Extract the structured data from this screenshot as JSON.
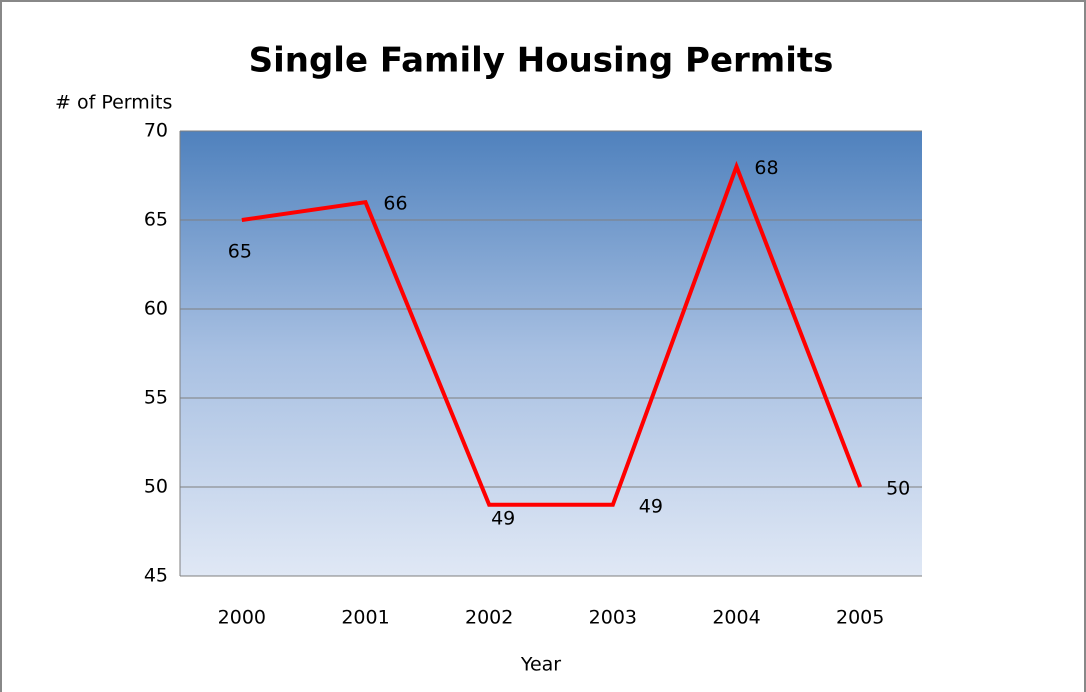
{
  "chart_data": {
    "type": "line",
    "title": "Single Family Housing Permits",
    "y_label": "# of Permits",
    "x_label": "Year",
    "categories": [
      "2000",
      "2001",
      "2002",
      "2003",
      "2004",
      "2005"
    ],
    "values": [
      65,
      66,
      49,
      49,
      68,
      50
    ],
    "color": "#ff0000",
    "ylim": [
      45,
      70
    ],
    "yticks": [
      45,
      50,
      55,
      60,
      65,
      70
    ],
    "grid": true
  }
}
